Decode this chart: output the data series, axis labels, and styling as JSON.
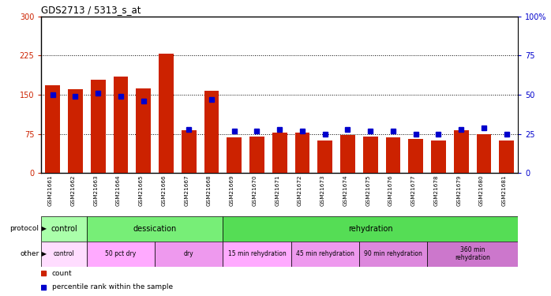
{
  "title": "GDS2713 / 5313_s_at",
  "samples": [
    "GSM21661",
    "GSM21662",
    "GSM21663",
    "GSM21664",
    "GSM21665",
    "GSM21666",
    "GSM21667",
    "GSM21668",
    "GSM21669",
    "GSM21670",
    "GSM21671",
    "GSM21672",
    "GSM21673",
    "GSM21674",
    "GSM21675",
    "GSM21676",
    "GSM21677",
    "GSM21678",
    "GSM21679",
    "GSM21680",
    "GSM21681"
  ],
  "counts": [
    168,
    160,
    178,
    185,
    162,
    228,
    82,
    157,
    68,
    70,
    78,
    78,
    63,
    73,
    70,
    68,
    65,
    62,
    82,
    75,
    63
  ],
  "percentile_ranks": [
    50,
    49,
    51,
    49,
    46,
    null,
    28,
    47,
    27,
    27,
    28,
    27,
    25,
    28,
    27,
    27,
    25,
    25,
    28,
    29,
    25
  ],
  "ylim_left": [
    0,
    300
  ],
  "ylim_right": [
    0,
    100
  ],
  "yticks_left": [
    0,
    75,
    150,
    225,
    300
  ],
  "yticks_right": [
    0,
    25,
    50,
    75,
    100
  ],
  "bar_color": "#cc2200",
  "square_color": "#0000cc",
  "bg_color": "#ffffff",
  "protocol_groups": [
    {
      "label": "control",
      "start": 0,
      "end": 2,
      "color": "#aaffaa"
    },
    {
      "label": "dessication",
      "start": 2,
      "end": 8,
      "color": "#77ee77"
    },
    {
      "label": "rehydration",
      "start": 8,
      "end": 21,
      "color": "#55dd55"
    }
  ],
  "other_groups": [
    {
      "label": "control",
      "start": 0,
      "end": 2,
      "color": "#ffddff"
    },
    {
      "label": "50 pct dry",
      "start": 2,
      "end": 5,
      "color": "#ffaaff"
    },
    {
      "label": "dry",
      "start": 5,
      "end": 8,
      "color": "#ee99ee"
    },
    {
      "label": "15 min rehydration",
      "start": 8,
      "end": 11,
      "color": "#ffaaff"
    },
    {
      "label": "45 min rehydration",
      "start": 11,
      "end": 14,
      "color": "#ee99ee"
    },
    {
      "label": "90 min rehydration",
      "start": 14,
      "end": 17,
      "color": "#dd88dd"
    },
    {
      "label": "360 min\nrehydration",
      "start": 17,
      "end": 21,
      "color": "#cc77cc"
    }
  ],
  "dotted_yticks": [
    75,
    150,
    225
  ],
  "tick_color_left": "#cc2200",
  "tick_color_right": "#0000cc"
}
